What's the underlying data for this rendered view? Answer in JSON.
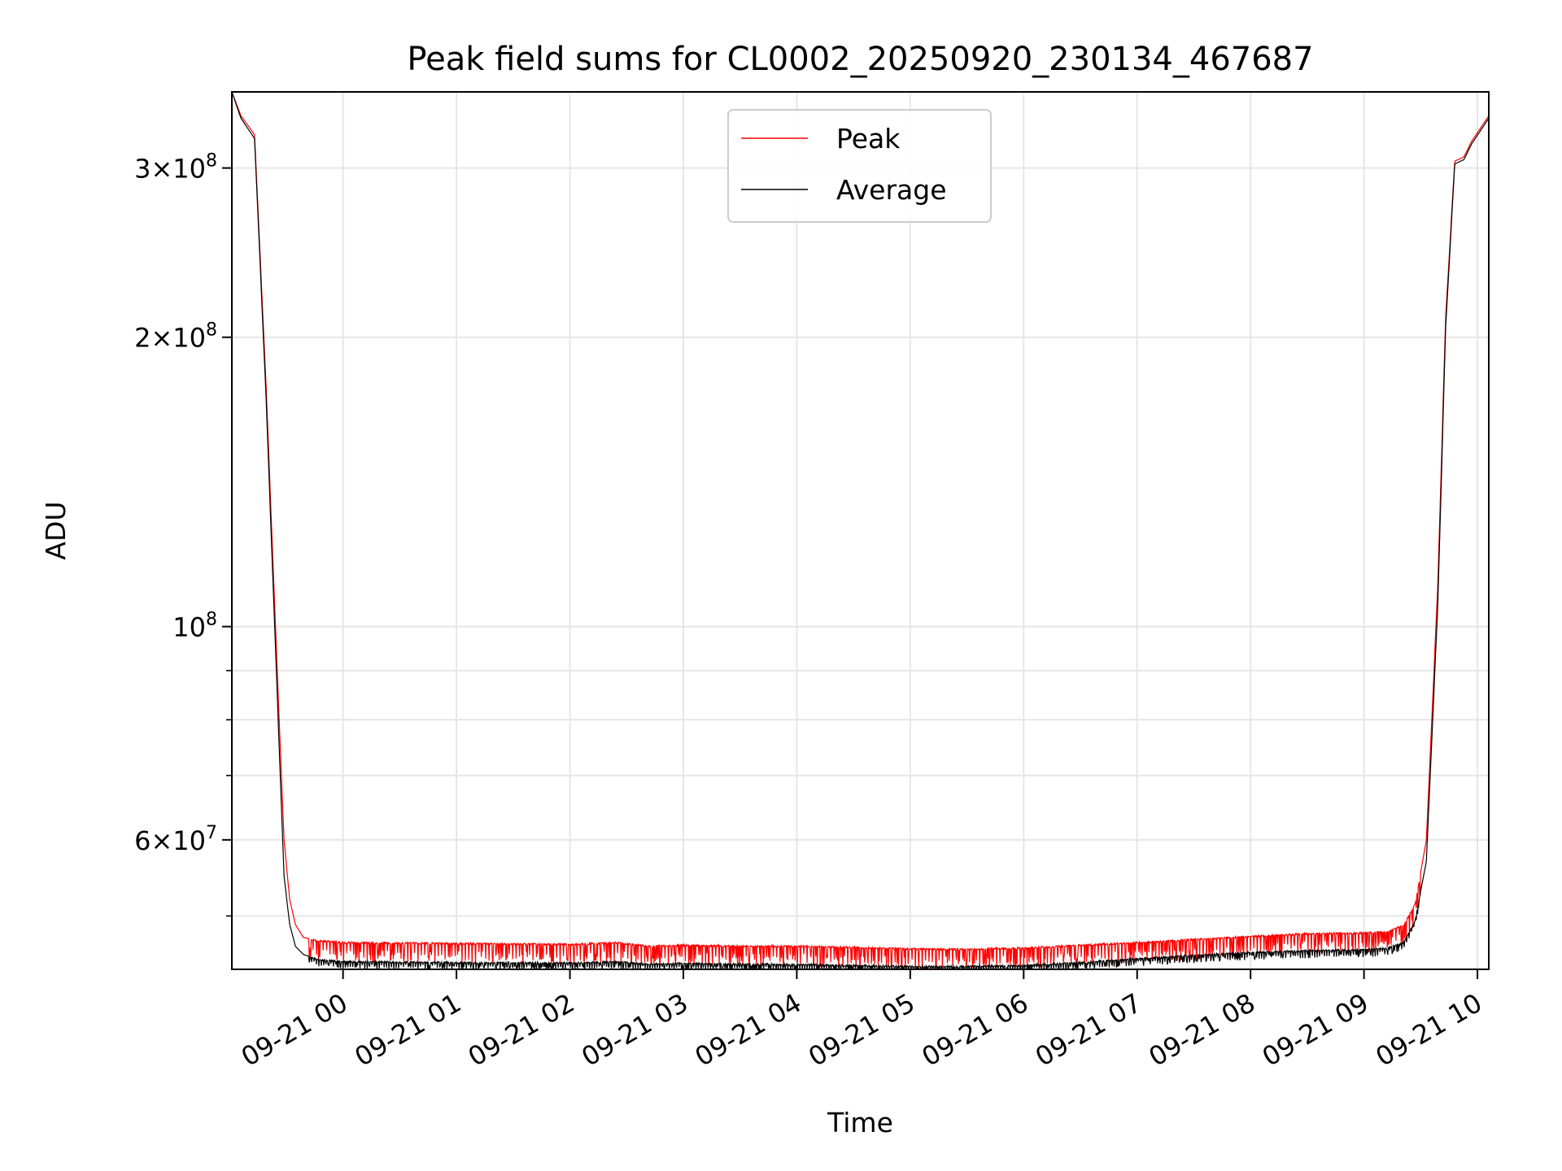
{
  "chart_data": {
    "type": "line",
    "title": "Peak field sums for CL0002_20250920_230134_467687",
    "xlabel": "Time",
    "ylabel": "ADU",
    "y_scale": "log",
    "ylim": [
      44000000,
      360000000
    ],
    "xlim_hours_since_midnight": [
      -0.98,
      10.1
    ],
    "x_ticks": [
      {
        "label": "09-21 00",
        "hour": 0
      },
      {
        "label": "09-21 01",
        "hour": 1
      },
      {
        "label": "09-21 02",
        "hour": 2
      },
      {
        "label": "09-21 03",
        "hour": 3
      },
      {
        "label": "09-21 04",
        "hour": 4
      },
      {
        "label": "09-21 05",
        "hour": 5
      },
      {
        "label": "09-21 06",
        "hour": 6
      },
      {
        "label": "09-21 07",
        "hour": 7
      },
      {
        "label": "09-21 08",
        "hour": 8
      },
      {
        "label": "09-21 09",
        "hour": 9
      },
      {
        "label": "09-21 10",
        "hour": 10
      }
    ],
    "y_major_ticks": [
      {
        "mantissa": "3",
        "exp": "8",
        "value": 300000000
      },
      {
        "mantissa": "2",
        "exp": "8",
        "value": 200000000
      },
      {
        "mantissa": "",
        "exp": "8",
        "value": 100000000
      },
      {
        "mantissa": "6",
        "exp": "7",
        "value": 60000000
      }
    ],
    "y_minor_values": [
      50000000,
      70000000,
      80000000,
      90000000
    ],
    "grid": true,
    "legend_position": "top-center",
    "series": [
      {
        "name": "Peak",
        "color": "#ff0000",
        "x": [
          -0.98,
          -0.9,
          -0.78,
          -0.68,
          -0.58,
          -0.52,
          -0.47,
          -0.42,
          -0.35,
          -0.28,
          -0.2,
          -0.1,
          0,
          0.5,
          1,
          1.5,
          2,
          2.4,
          2.7,
          3,
          3.5,
          4,
          4.5,
          5,
          5.5,
          6,
          6.5,
          7,
          7.5,
          8,
          8.5,
          9,
          9.2,
          9.35,
          9.45,
          9.55,
          9.65,
          9.72,
          9.8,
          9.88,
          9.95,
          10.1
        ],
        "y": [
          360000000,
          340000000,
          325000000,
          180000000,
          90000000,
          60000000,
          52000000,
          49000000,
          47500000,
          47300000,
          47200000,
          47100000,
          47000000,
          46950000,
          46900000,
          46850000,
          46800000,
          47000000,
          46600000,
          46700000,
          46600000,
          46600000,
          46450000,
          46300000,
          46250000,
          46400000,
          46700000,
          47000000,
          47350000,
          47700000,
          48000000,
          48100000,
          48250000,
          49000000,
          51500000,
          60000000,
          110000000,
          210000000,
          305000000,
          308000000,
          320000000,
          340000000
        ]
      },
      {
        "name": "Average",
        "color": "#000000",
        "x": [
          -0.98,
          -0.9,
          -0.78,
          -0.68,
          -0.58,
          -0.52,
          -0.47,
          -0.42,
          -0.35,
          -0.28,
          -0.2,
          -0.1,
          0,
          0.5,
          1,
          1.5,
          2,
          2.4,
          2.7,
          3,
          3.5,
          4,
          4.5,
          5,
          5.5,
          6,
          6.5,
          7,
          7.5,
          8,
          8.5,
          9,
          9.2,
          9.35,
          9.45,
          9.55,
          9.65,
          9.72,
          9.8,
          9.88,
          9.95,
          10.1
        ],
        "y": [
          360000000,
          338000000,
          322000000,
          175000000,
          85000000,
          55000000,
          49000000,
          46500000,
          45600000,
          45300000,
          45100000,
          45000000,
          44900000,
          44850000,
          44800000,
          44780000,
          44760000,
          44900000,
          44650000,
          44700000,
          44650000,
          44600000,
          44500000,
          44400000,
          44380000,
          44500000,
          44800000,
          45200000,
          45600000,
          45900000,
          46100000,
          46200000,
          46350000,
          47000000,
          49500000,
          57000000,
          105000000,
          205000000,
          303000000,
          306000000,
          318000000,
          338000000
        ]
      }
    ]
  }
}
